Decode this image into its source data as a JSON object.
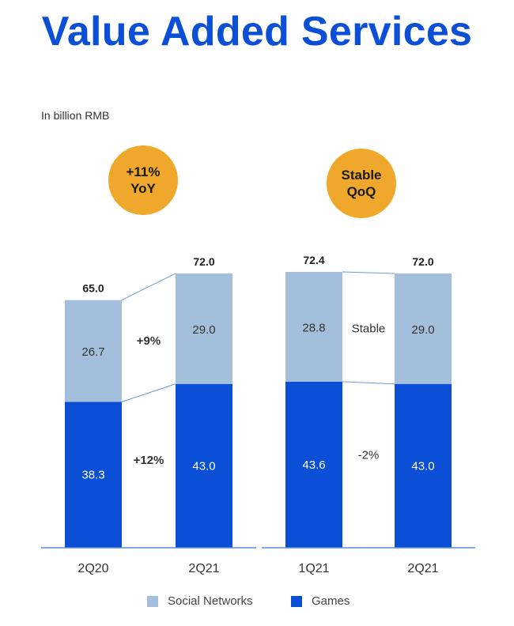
{
  "title": "Value Added Services",
  "unit_label": "In billion RMB",
  "colors": {
    "games": "#0a4fd6",
    "social": "#a4bfdc",
    "badge": "#efa82b",
    "connector": "#6f9bd1",
    "baseline": "#5a8bd6"
  },
  "chart_data": [
    {
      "type": "bar",
      "stacked": true,
      "badge": [
        "+11%",
        "YoY"
      ],
      "categories": [
        "2Q20",
        "2Q21"
      ],
      "series": [
        {
          "name": "Games",
          "values": [
            38.3,
            43.0
          ]
        },
        {
          "name": "Social Networks",
          "values": [
            26.7,
            29.0
          ]
        }
      ],
      "totals": [
        "65.0",
        "72.0"
      ],
      "value_labels": {
        "games": [
          "38.3",
          "43.0"
        ],
        "social": [
          "26.7",
          "29.0"
        ]
      },
      "change_labels": {
        "games": "+12%",
        "social": "+9%"
      }
    },
    {
      "type": "bar",
      "stacked": true,
      "badge": [
        "Stable",
        "QoQ"
      ],
      "categories": [
        "1Q21",
        "2Q21"
      ],
      "series": [
        {
          "name": "Games",
          "values": [
            43.6,
            43.0
          ]
        },
        {
          "name": "Social Networks",
          "values": [
            28.8,
            29.0
          ]
        }
      ],
      "totals": [
        "72.4",
        "72.0"
      ],
      "value_labels": {
        "games": [
          "43.6",
          "43.0"
        ],
        "social": [
          "28.8",
          "29.0"
        ]
      },
      "change_labels": {
        "games": "-2%",
        "social": "Stable"
      }
    }
  ],
  "legend": [
    {
      "key": "social",
      "label": "Social Networks"
    },
    {
      "key": "games",
      "label": "Games"
    }
  ]
}
